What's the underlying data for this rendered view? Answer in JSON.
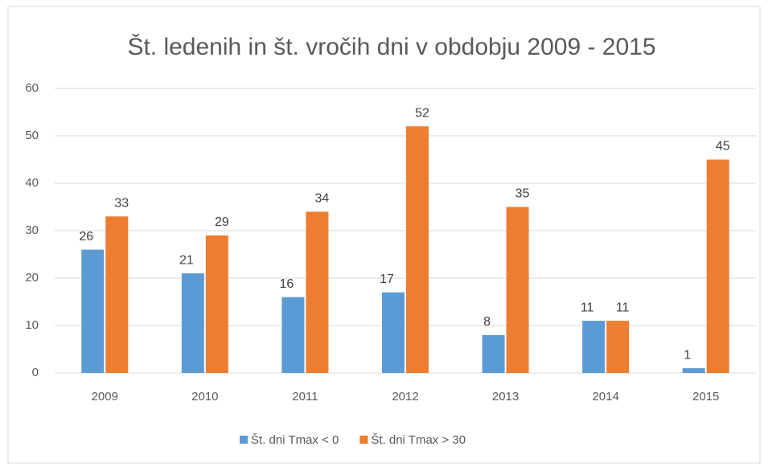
{
  "chart_data": {
    "type": "bar",
    "title": "Št. ledenih in št. vročih dni v obdobju 2009 - 2015",
    "categories": [
      "2009",
      "2010",
      "2011",
      "2012",
      "2013",
      "2014",
      "2015"
    ],
    "series": [
      {
        "name": "Št. dni Tmax < 0",
        "color": "#5b9bd5",
        "values": [
          26,
          21,
          16,
          17,
          8,
          11,
          1
        ]
      },
      {
        "name": "Št. dni Tmax > 30",
        "color": "#ed7d31",
        "values": [
          33,
          29,
          34,
          52,
          35,
          11,
          45
        ]
      }
    ],
    "ylim": [
      0,
      60
    ],
    "yticks": [
      0,
      10,
      20,
      30,
      40,
      50,
      60
    ],
    "grid": true,
    "legend": "bottom"
  }
}
